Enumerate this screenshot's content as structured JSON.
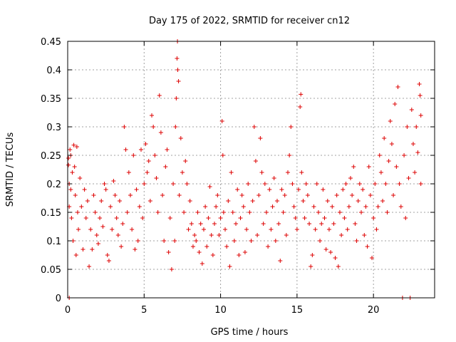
{
  "chart_data": {
    "type": "scatter",
    "title": "Day 175 of 2022, SRMTID for receiver cn12",
    "xlabel": "GPS time / hours",
    "ylabel": "SRMTID / TECUs",
    "xlim": [
      0,
      24
    ],
    "ylim": [
      0,
      0.45
    ],
    "x_ticks": [
      0,
      5,
      10,
      15,
      20
    ],
    "y_ticks": [
      0,
      0.05,
      0.1,
      0.15,
      0.2,
      0.25,
      0.3,
      0.35,
      0.4,
      0.45
    ],
    "x_tick_labels": [
      "0",
      "5",
      "10",
      "15",
      "20"
    ],
    "y_tick_labels": [
      "0",
      "0.05",
      "0.1",
      "0.15",
      "0.2",
      "0.25",
      "0.3",
      "0.35",
      "0.4",
      "0.45"
    ],
    "grid": true,
    "marker": "+",
    "series": [
      {
        "name": "SRMTID",
        "color": "#dd0000",
        "points": [
          [
            0.05,
            0.245
          ],
          [
            0.05,
            0.233
          ],
          [
            0.1,
            0.0
          ],
          [
            0.1,
            0.2
          ],
          [
            0.1,
            0.16
          ],
          [
            0.15,
            0.26
          ],
          [
            0.2,
            0.25
          ],
          [
            0.2,
            0.19
          ],
          [
            0.25,
            0.14
          ],
          [
            0.3,
            0.22
          ],
          [
            0.35,
            0.1
          ],
          [
            0.4,
            0.268
          ],
          [
            0.45,
            0.23
          ],
          [
            0.5,
            0.18
          ],
          [
            0.55,
            0.075
          ],
          [
            0.6,
            0.265
          ],
          [
            0.65,
            0.15
          ],
          [
            0.7,
            0.12
          ],
          [
            0.8,
            0.21
          ],
          [
            0.9,
            0.16
          ],
          [
            1.0,
            0.085
          ],
          [
            1.1,
            0.19
          ],
          [
            1.2,
            0.14
          ],
          [
            1.3,
            0.17
          ],
          [
            1.4,
            0.055
          ],
          [
            1.5,
            0.12
          ],
          [
            1.6,
            0.085
          ],
          [
            1.7,
            0.18
          ],
          [
            1.8,
            0.15
          ],
          [
            1.9,
            0.11
          ],
          [
            2.0,
            0.095
          ],
          [
            2.1,
            0.14
          ],
          [
            2.2,
            0.17
          ],
          [
            2.3,
            0.125
          ],
          [
            2.4,
            0.2
          ],
          [
            2.5,
            0.19
          ],
          [
            2.6,
            0.075
          ],
          [
            2.7,
            0.065
          ],
          [
            2.8,
            0.16
          ],
          [
            2.9,
            0.12
          ],
          [
            3.0,
            0.205
          ],
          [
            3.1,
            0.18
          ],
          [
            3.2,
            0.14
          ],
          [
            3.3,
            0.11
          ],
          [
            3.4,
            0.17
          ],
          [
            3.5,
            0.09
          ],
          [
            3.6,
            0.13
          ],
          [
            3.7,
            0.3
          ],
          [
            3.8,
            0.26
          ],
          [
            3.9,
            0.15
          ],
          [
            4.0,
            0.22
          ],
          [
            4.1,
            0.18
          ],
          [
            4.2,
            0.12
          ],
          [
            4.3,
            0.25
          ],
          [
            4.4,
            0.085
          ],
          [
            4.5,
            0.19
          ],
          [
            4.6,
            0.1
          ],
          [
            4.7,
            0.16
          ],
          [
            4.8,
            0.26
          ],
          [
            4.9,
            0.14
          ],
          [
            5.0,
            0.2
          ],
          [
            5.1,
            0.27
          ],
          [
            5.2,
            0.22
          ],
          [
            5.3,
            0.24
          ],
          [
            5.4,
            0.17
          ],
          [
            5.5,
            0.32
          ],
          [
            5.6,
            0.3
          ],
          [
            5.7,
            0.25
          ],
          [
            5.8,
            0.21
          ],
          [
            5.9,
            0.15
          ],
          [
            6.0,
            0.355
          ],
          [
            6.1,
            0.29
          ],
          [
            6.2,
            0.18
          ],
          [
            6.3,
            0.1
          ],
          [
            6.4,
            0.23
          ],
          [
            6.5,
            0.26
          ],
          [
            6.6,
            0.08
          ],
          [
            6.7,
            0.14
          ],
          [
            6.8,
            0.05
          ],
          [
            6.9,
            0.2
          ],
          [
            7.0,
            0.1
          ],
          [
            7.05,
            0.3
          ],
          [
            7.1,
            0.35
          ],
          [
            7.15,
            0.42
          ],
          [
            7.18,
            0.45
          ],
          [
            7.2,
            0.4
          ],
          [
            7.25,
            0.38
          ],
          [
            7.3,
            0.18
          ],
          [
            7.4,
            0.28
          ],
          [
            7.5,
            0.22
          ],
          [
            7.6,
            0.15
          ],
          [
            7.7,
            0.24
          ],
          [
            7.8,
            0.2
          ],
          [
            7.9,
            0.12
          ],
          [
            8.0,
            0.17
          ],
          [
            8.1,
            0.13
          ],
          [
            8.2,
            0.09
          ],
          [
            8.3,
            0.11
          ],
          [
            8.4,
            0.1
          ],
          [
            8.5,
            0.15
          ],
          [
            8.6,
            0.08
          ],
          [
            8.7,
            0.13
          ],
          [
            8.8,
            0.06
          ],
          [
            8.9,
            0.12
          ],
          [
            9.0,
            0.16
          ],
          [
            9.1,
            0.09
          ],
          [
            9.2,
            0.14
          ],
          [
            9.3,
            0.195
          ],
          [
            9.4,
            0.11
          ],
          [
            9.5,
            0.075
          ],
          [
            9.6,
            0.13
          ],
          [
            9.7,
            0.16
          ],
          [
            9.8,
            0.18
          ],
          [
            9.9,
            0.11
          ],
          [
            10.0,
            0.14
          ],
          [
            10.1,
            0.31
          ],
          [
            10.15,
            0.25
          ],
          [
            10.2,
            0.15
          ],
          [
            10.3,
            0.12
          ],
          [
            10.4,
            0.09
          ],
          [
            10.5,
            0.17
          ],
          [
            10.6,
            0.055
          ],
          [
            10.7,
            0.22
          ],
          [
            10.8,
            0.15
          ],
          [
            10.9,
            0.1
          ],
          [
            11.0,
            0.13
          ],
          [
            11.1,
            0.19
          ],
          [
            11.2,
            0.075
          ],
          [
            11.3,
            0.14
          ],
          [
            11.4,
            0.18
          ],
          [
            11.5,
            0.16
          ],
          [
            11.6,
            0.08
          ],
          [
            11.7,
            0.12
          ],
          [
            11.8,
            0.2
          ],
          [
            11.9,
            0.15
          ],
          [
            12.0,
            0.1
          ],
          [
            12.1,
            0.17
          ],
          [
            12.2,
            0.3
          ],
          [
            12.3,
            0.24
          ],
          [
            12.4,
            0.11
          ],
          [
            12.5,
            0.18
          ],
          [
            12.6,
            0.28
          ],
          [
            12.7,
            0.22
          ],
          [
            12.8,
            0.13
          ],
          [
            12.9,
            0.2
          ],
          [
            13.0,
            0.15
          ],
          [
            13.1,
            0.09
          ],
          [
            13.2,
            0.19
          ],
          [
            13.3,
            0.12
          ],
          [
            13.4,
            0.16
          ],
          [
            13.5,
            0.21
          ],
          [
            13.6,
            0.1
          ],
          [
            13.7,
            0.17
          ],
          [
            13.8,
            0.13
          ],
          [
            13.9,
            0.065
          ],
          [
            14.0,
            0.19
          ],
          [
            14.1,
            0.15
          ],
          [
            14.2,
            0.18
          ],
          [
            14.3,
            0.11
          ],
          [
            14.4,
            0.22
          ],
          [
            14.5,
            0.25
          ],
          [
            14.6,
            0.3
          ],
          [
            14.7,
            0.2
          ],
          [
            14.8,
            0.16
          ],
          [
            14.9,
            0.14
          ],
          [
            15.0,
            0.12
          ],
          [
            15.1,
            0.19
          ],
          [
            15.2,
            0.335
          ],
          [
            15.25,
            0.357
          ],
          [
            15.3,
            0.22
          ],
          [
            15.4,
            0.17
          ],
          [
            15.5,
            0.14
          ],
          [
            15.6,
            0.2
          ],
          [
            15.7,
            0.18
          ],
          [
            15.8,
            0.13
          ],
          [
            15.9,
            0.055
          ],
          [
            16.0,
            0.075
          ],
          [
            16.1,
            0.16
          ],
          [
            16.2,
            0.12
          ],
          [
            16.3,
            0.2
          ],
          [
            16.4,
            0.15
          ],
          [
            16.5,
            0.1
          ],
          [
            16.6,
            0.13
          ],
          [
            16.7,
            0.19
          ],
          [
            16.8,
            0.14
          ],
          [
            16.9,
            0.085
          ],
          [
            17.0,
            0.17
          ],
          [
            17.1,
            0.12
          ],
          [
            17.2,
            0.08
          ],
          [
            17.3,
            0.16
          ],
          [
            17.4,
            0.13
          ],
          [
            17.5,
            0.07
          ],
          [
            17.6,
            0.18
          ],
          [
            17.7,
            0.055
          ],
          [
            17.8,
            0.15
          ],
          [
            17.9,
            0.11
          ],
          [
            18.0,
            0.19
          ],
          [
            18.1,
            0.14
          ],
          [
            18.2,
            0.2
          ],
          [
            18.3,
            0.12
          ],
          [
            18.4,
            0.16
          ],
          [
            18.5,
            0.21
          ],
          [
            18.6,
            0.18
          ],
          [
            18.7,
            0.23
          ],
          [
            18.8,
            0.13
          ],
          [
            18.9,
            0.1
          ],
          [
            19.0,
            0.17
          ],
          [
            19.1,
            0.2
          ],
          [
            19.2,
            0.15
          ],
          [
            19.3,
            0.19
          ],
          [
            19.4,
            0.11
          ],
          [
            19.5,
            0.16
          ],
          [
            19.6,
            0.09
          ],
          [
            19.7,
            0.23
          ],
          [
            19.8,
            0.18
          ],
          [
            19.9,
            0.07
          ],
          [
            20.0,
            0.14
          ],
          [
            20.1,
            0.2
          ],
          [
            20.2,
            0.12
          ],
          [
            20.3,
            0.16
          ],
          [
            20.4,
            0.25
          ],
          [
            20.5,
            0.22
          ],
          [
            20.6,
            0.17
          ],
          [
            20.7,
            0.28
          ],
          [
            20.8,
            0.2
          ],
          [
            20.9,
            0.15
          ],
          [
            21.0,
            0.24
          ],
          [
            21.1,
            0.31
          ],
          [
            21.2,
            0.27
          ],
          [
            21.3,
            0.18
          ],
          [
            21.4,
            0.34
          ],
          [
            21.5,
            0.23
          ],
          [
            21.6,
            0.37
          ],
          [
            21.7,
            0.2
          ],
          [
            21.8,
            0.16
          ],
          [
            21.9,
            0.0
          ],
          [
            22.0,
            0.25
          ],
          [
            22.1,
            0.14
          ],
          [
            22.2,
            0.3
          ],
          [
            22.3,
            0.21
          ],
          [
            22.4,
            0.0
          ],
          [
            22.5,
            0.33
          ],
          [
            22.6,
            0.27
          ],
          [
            22.7,
            0.22
          ],
          [
            22.8,
            0.3
          ],
          [
            22.9,
            0.255
          ],
          [
            23.0,
            0.375
          ],
          [
            23.05,
            0.355
          ],
          [
            23.1,
            0.2
          ],
          [
            23.1,
            0.32
          ]
        ]
      }
    ]
  }
}
